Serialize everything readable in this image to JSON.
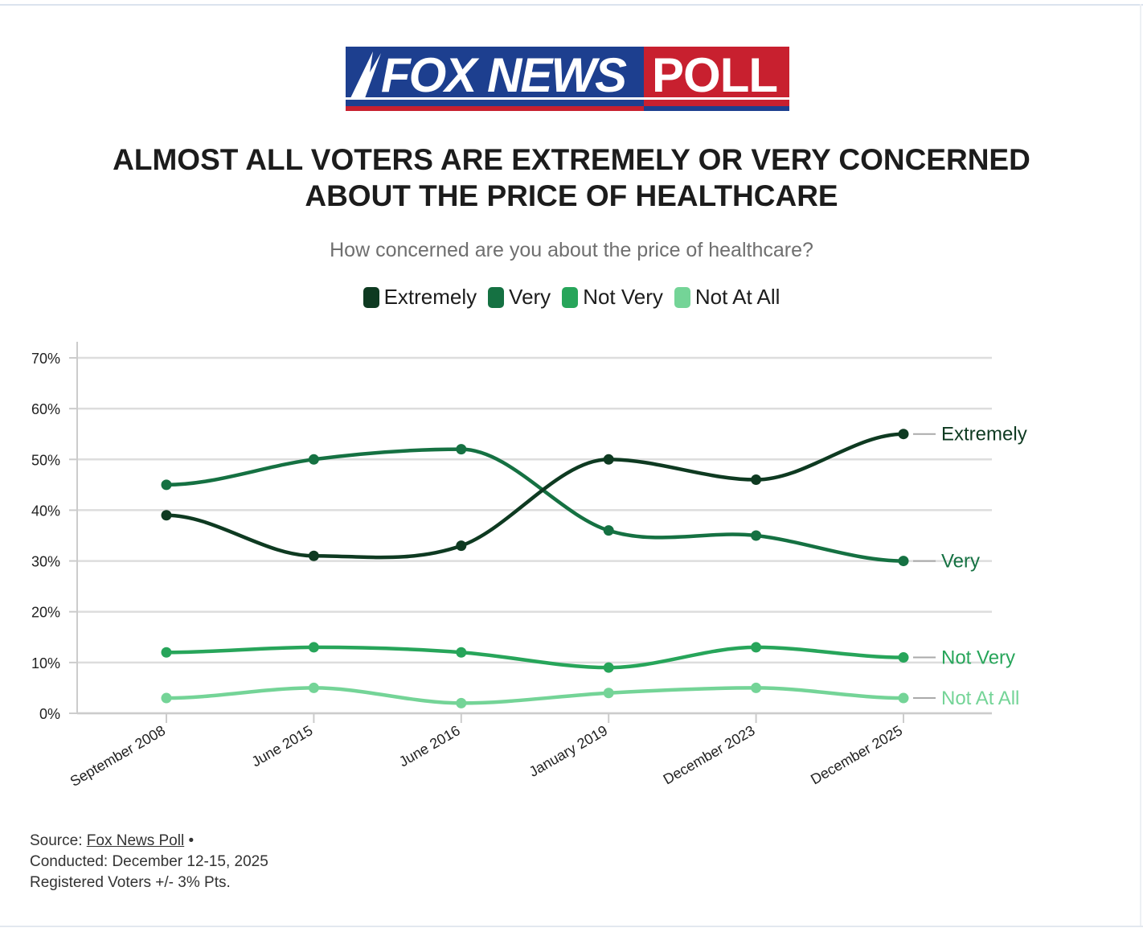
{
  "logo": {
    "left_text": "FOX NEWS",
    "right_text": "POLL"
  },
  "title_line1": "ALMOST ALL VOTERS ARE EXTREMELY OR VERY CONCERNED",
  "title_line2": "ABOUT THE PRICE OF HEALTHCARE",
  "subtitle": "How concerned are you about the price of healthcare?",
  "colors": {
    "extremely": "#0e3a21",
    "very": "#157142",
    "not_very": "#27a55a",
    "not_at_all": "#74d497",
    "gridline": "#dddddd",
    "axis": "#cccccc"
  },
  "legend": [
    {
      "label": "Extremely",
      "color": "#0e3a21"
    },
    {
      "label": "Very",
      "color": "#157142"
    },
    {
      "label": "Not Very",
      "color": "#27a55a"
    },
    {
      "label": "Not At All",
      "color": "#74d497"
    }
  ],
  "chart_data": {
    "type": "line",
    "title": "ALMOST ALL VOTERS ARE EXTREMELY OR VERY CONCERNED ABOUT THE PRICE OF HEALTHCARE",
    "subtitle": "How concerned are you about the price of healthcare?",
    "categories": [
      "September 2008",
      "June 2015",
      "June 2016",
      "January 2019",
      "December 2023",
      "December 2025"
    ],
    "y_ticks": [
      "70%",
      "60%",
      "50%",
      "40%",
      "30%",
      "20%",
      "10%",
      "0%"
    ],
    "ylim": [
      0,
      70
    ],
    "grid": true,
    "legend_position": "top",
    "series": [
      {
        "name": "Extremely",
        "values": [
          39,
          31,
          33,
          50,
          46,
          55
        ],
        "color": "#0e3a21"
      },
      {
        "name": "Very",
        "values": [
          45,
          50,
          52,
          36,
          35,
          30
        ],
        "color": "#157142"
      },
      {
        "name": "Not Very",
        "values": [
          12,
          13,
          12,
          9,
          13,
          11
        ],
        "color": "#27a55a"
      },
      {
        "name": "Not At All",
        "values": [
          3,
          5,
          2,
          4,
          5,
          3
        ],
        "color": "#74d497"
      }
    ]
  },
  "source": {
    "prefix": "Source: ",
    "link": "Fox News Poll",
    "suffix": " •",
    "conducted": "Conducted: December 12-15, 2025",
    "margin": "Registered Voters +/- 3% Pts."
  }
}
